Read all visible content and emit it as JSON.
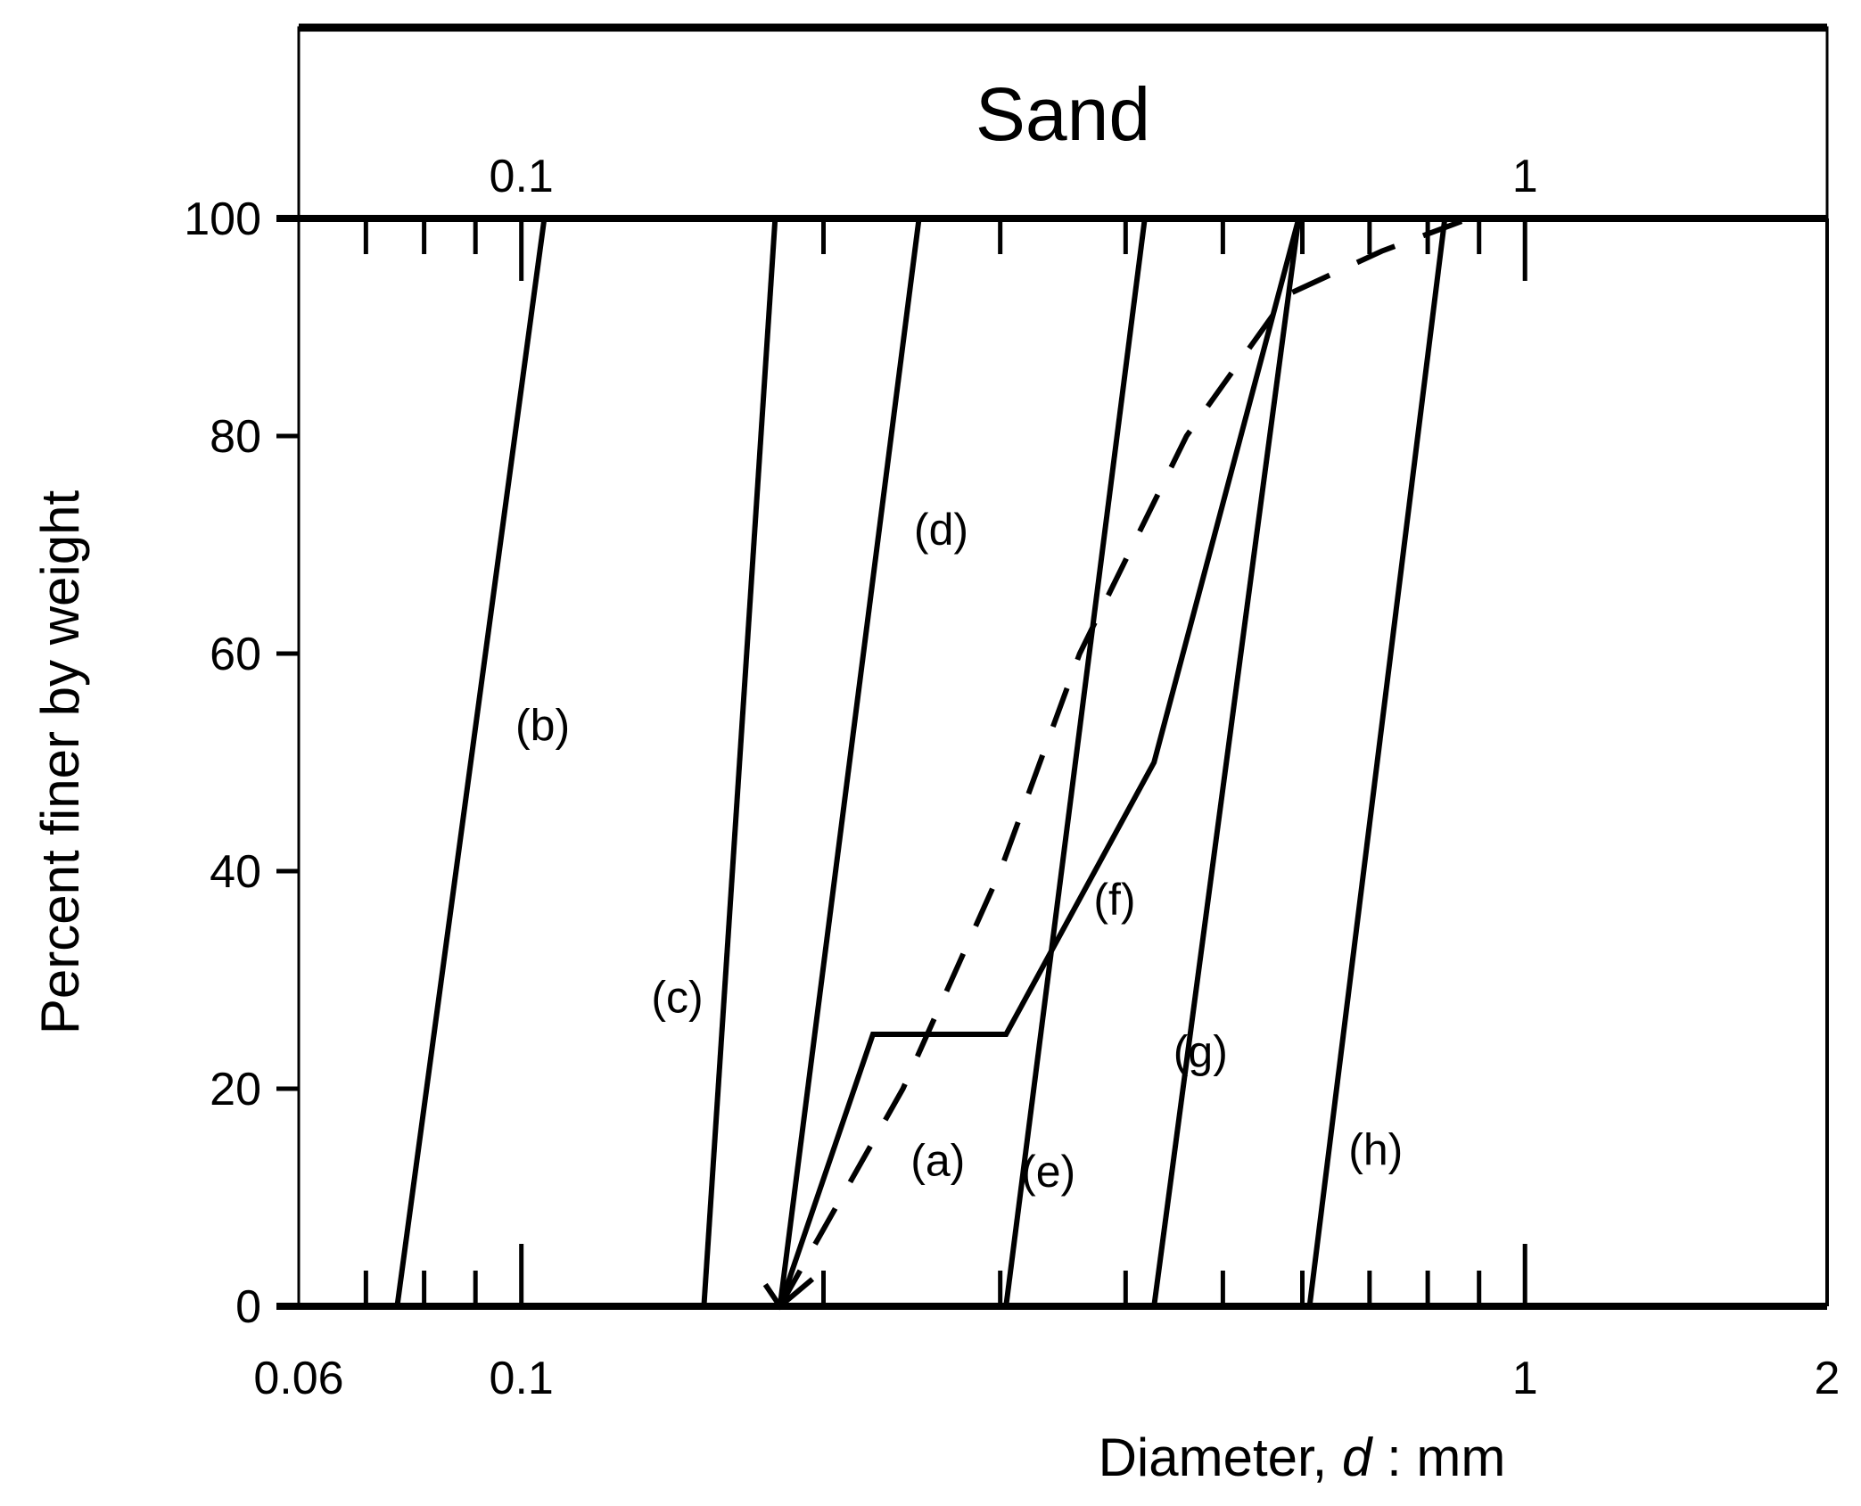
{
  "chart_data": {
    "type": "line",
    "title": "",
    "band_label": "Sand",
    "xlabel": "Diameter, d : mm",
    "xlabel_parts": {
      "prefix": "Diameter, ",
      "italic": "d",
      "suffix": " : mm"
    },
    "ylabel": "Percent finer by weight",
    "xscale": "log",
    "xlim": [
      0.06,
      2
    ],
    "ylim": [
      0,
      100
    ],
    "x_tick_labels": [
      "0.06",
      "0.1",
      "1",
      "2"
    ],
    "x_ticks": [
      0.06,
      0.1,
      1,
      2
    ],
    "top_tick_labels": [
      "0.1",
      "1"
    ],
    "y_ticks": [
      0,
      20,
      40,
      60,
      80,
      100
    ],
    "y_tick_labels": [
      "0",
      "20",
      "40",
      "60",
      "80",
      "100"
    ],
    "grid": false,
    "legend": "inline labels",
    "series": [
      {
        "name": "(a)",
        "style": "dashed",
        "x": [
          0.181,
          0.24,
          0.3,
          0.36,
          0.46,
          0.58,
          0.72,
          0.88
        ],
        "y": [
          0,
          20,
          40,
          60,
          80,
          93,
          97,
          100
        ]
      },
      {
        "name": "(b)",
        "style": "solid",
        "x": [
          0.0752,
          0.1054
        ],
        "y": [
          0,
          100
        ]
      },
      {
        "name": "(c)",
        "style": "solid",
        "x": [
          0.152,
          0.179
        ],
        "y": [
          0,
          100
        ]
      },
      {
        "name": "(d)",
        "style": "solid",
        "x": [
          0.181,
          0.249
        ],
        "y": [
          0,
          100
        ]
      },
      {
        "name": "(e)",
        "style": "solid",
        "x": [
          0.304,
          0.418
        ],
        "y": [
          0,
          100
        ]
      },
      {
        "name": "(f)",
        "style": "solid",
        "x": [
          0.181,
          0.224,
          0.304,
          0.427,
          0.595
        ],
        "y": [
          0,
          25,
          25,
          50,
          100
        ]
      },
      {
        "name": "(g)",
        "style": "solid",
        "x": [
          0.427,
          0.595
        ],
        "y": [
          0,
          100
        ]
      },
      {
        "name": "(h)",
        "style": "solid",
        "x": [
          0.61,
          0.832
        ],
        "y": [
          0,
          100
        ]
      }
    ],
    "annotations": [
      {
        "text": "(a)",
        "x": 0.26,
        "y": 12
      },
      {
        "text": "(b)",
        "x": 0.105,
        "y": 52
      },
      {
        "text": "(c)",
        "x": 0.143,
        "y": 27
      },
      {
        "text": "(d)",
        "x": 0.262,
        "y": 70
      },
      {
        "text": "(e)",
        "x": 0.335,
        "y": 11
      },
      {
        "text": "(f)",
        "x": 0.39,
        "y": 36
      },
      {
        "text": "(g)",
        "x": 0.475,
        "y": 22
      },
      {
        "text": "(h)",
        "x": 0.71,
        "y": 13
      }
    ]
  }
}
